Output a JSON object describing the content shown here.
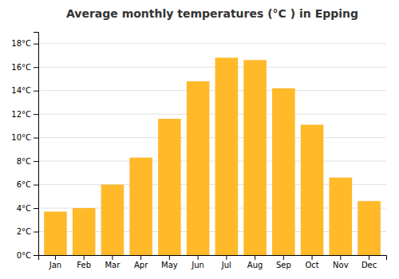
{
  "chart_data": {
    "type": "bar",
    "title": "Average monthly temperatures (°C ) in Epping",
    "categories": [
      "Jan",
      "Feb",
      "Mar",
      "Apr",
      "May",
      "Jun",
      "Jul",
      "Aug",
      "Sep",
      "Oct",
      "Nov",
      "Dec"
    ],
    "values": [
      3.7,
      4.0,
      6.0,
      8.3,
      11.6,
      14.8,
      16.8,
      16.6,
      14.2,
      11.1,
      6.6,
      4.6
    ],
    "color": "#FFB929",
    "ylim": [
      0,
      19
    ],
    "yticks": [
      {
        "value": 0,
        "label": "0°C"
      },
      {
        "value": 2,
        "label": "2°C"
      },
      {
        "value": 4,
        "label": "4°C"
      },
      {
        "value": 6,
        "label": "6°C"
      },
      {
        "value": 8,
        "label": "8°C"
      },
      {
        "value": 10,
        "label": "10°C"
      },
      {
        "value": 12,
        "label": "12°C"
      },
      {
        "value": 14,
        "label": "14°C"
      },
      {
        "value": 16,
        "label": "16°C"
      },
      {
        "value": 18,
        "label": "18°C"
      }
    ],
    "grid": true
  }
}
